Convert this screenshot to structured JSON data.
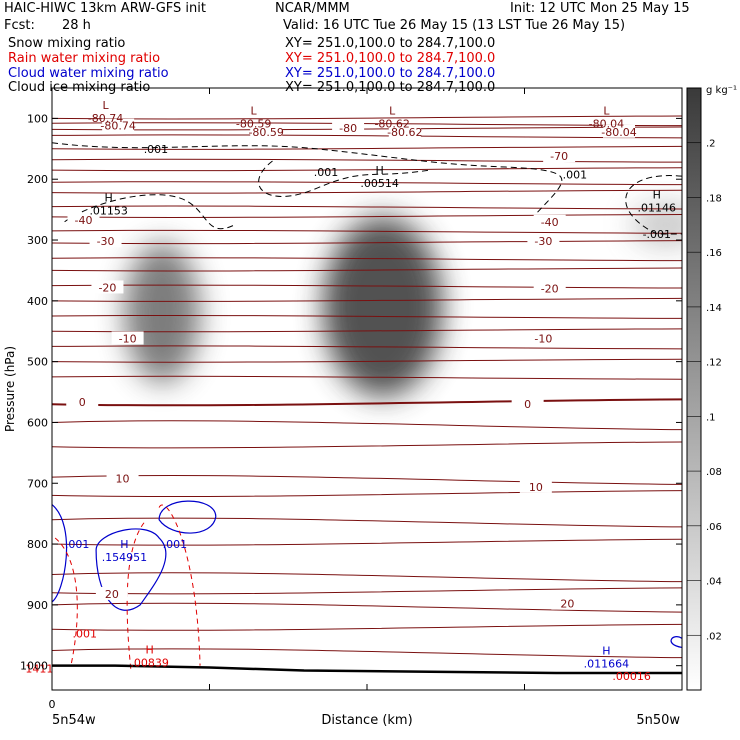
{
  "header": {
    "title": "HAIC-HIWC 13km ARW-GFS init",
    "org": "NCAR/MMM",
    "init": "Init: 12 UTC Mon 25 May 15",
    "fcst_label": "Fcst:",
    "fcst_value": "28 h",
    "valid": "Valid: 16 UTC Tue 26 May 15 (13 LST Tue 26 May 15)"
  },
  "fields": [
    {
      "name": "Snow mixing ratio",
      "xy": "XY= 251.0,100.0 to 284.7,100.0",
      "color": "#000000"
    },
    {
      "name": "Rain water mixing ratio",
      "xy": "XY= 251.0,100.0 to 284.7,100.0",
      "color": "#e00000"
    },
    {
      "name": "Cloud water mixing ratio",
      "xy": "XY= 251.0,100.0 to 284.7,100.0",
      "color": "#0000cc"
    },
    {
      "name": "Cloud ice mixing ratio",
      "xy": "XY= 251.0,100.0 to 284.7,100.0",
      "color": "#000000"
    }
  ],
  "colors": {
    "temperature_contour": "#7a1010",
    "rain_contour": "#e00000",
    "cloud_water_contour": "#0000cc",
    "cloud_ice_contour": "#000000",
    "terrain": "#000000"
  },
  "chart_data": {
    "type": "heatmap",
    "ylabel": "Pressure (hPa)",
    "xlabel": "Distance (km)",
    "x_start_label": "5n54w",
    "x_end_label": "5n50w",
    "x_zero_label": "0",
    "y_ticks": [
      100,
      200,
      300,
      400,
      500,
      600,
      700,
      800,
      900,
      1000
    ],
    "ylim": [
      50,
      1040
    ],
    "xlim": [
      0,
      1000
    ],
    "x_ticks": [
      0,
      250,
      500,
      750,
      1000
    ],
    "colorbar": {
      "unit": "g kg⁻¹",
      "ticks": [
        ".02",
        ".04",
        ".06",
        ".08",
        ".1",
        ".12",
        ".14",
        ".16",
        ".18",
        ".2"
      ],
      "range": [
        0,
        0.22
      ]
    },
    "snow_blobs": [
      {
        "x": 175,
        "p": 420,
        "value": 0.15
      },
      {
        "x": 525,
        "p": 410,
        "value": 0.2
      },
      {
        "x": 975,
        "p": 275,
        "value": 0.06
      }
    ],
    "temperature_labels": [
      {
        "text": "-80.74",
        "x": 105,
        "p": 112
      },
      {
        "text": "-80.59",
        "x": 340,
        "p": 122
      },
      {
        "text": "-80",
        "x": 470,
        "p": 116
      },
      {
        "text": "-80.62",
        "x": 560,
        "p": 122
      },
      {
        "text": "-80.04",
        "x": 900,
        "p": 122
      },
      {
        "text": "-70",
        "x": 805,
        "p": 162
      },
      {
        "text": "-40",
        "x": 50,
        "p": 267
      },
      {
        "text": "-40",
        "x": 790,
        "p": 270
      },
      {
        "text": "-30",
        "x": 85,
        "p": 302
      },
      {
        "text": "-30",
        "x": 780,
        "p": 302
      },
      {
        "text": "-20",
        "x": 88,
        "p": 378
      },
      {
        "text": "-20",
        "x": 790,
        "p": 380
      },
      {
        "text": "-10",
        "x": 120,
        "p": 462
      },
      {
        "text": "-10",
        "x": 780,
        "p": 462
      },
      {
        "text": "0",
        "x": 48,
        "p": 566
      },
      {
        "text": "0",
        "x": 755,
        "p": 570
      },
      {
        "text": "10",
        "x": 112,
        "p": 692
      },
      {
        "text": "10",
        "x": 768,
        "p": 706
      },
      {
        "text": "20",
        "x": 95,
        "p": 882
      },
      {
        "text": "20",
        "x": 818,
        "p": 898
      }
    ],
    "extrema": [
      {
        "kind": "L",
        "text": "-80.74",
        "x": 85,
        "p": 93
      },
      {
        "kind": "L",
        "text": "-80.59",
        "x": 320,
        "p": 102
      },
      {
        "kind": "L",
        "text": "-80.62",
        "x": 540,
        "p": 102
      },
      {
        "kind": "L",
        "text": "-80.04",
        "x": 880,
        "p": 102
      },
      {
        "kind": "H",
        "text": ".01153",
        "x": 90,
        "p": 245
      },
      {
        "kind": "H",
        "text": ".00514",
        "x": 520,
        "p": 200
      },
      {
        "kind": "H",
        "text": ".01146",
        "x": 960,
        "p": 240
      },
      {
        "kind": "H",
        "text": ".154951",
        "x": 115,
        "p": 815
      },
      {
        "kind": "H",
        "text": ".00839",
        "x": 155,
        "p": 988
      },
      {
        "kind": "H",
        "text": ".011664",
        "x": 880,
        "p": 990
      },
      {
        "kind": "",
        "text": ".00016",
        "x": 920,
        "p": 1010
      }
    ],
    "ice_labels": [
      {
        "text": ".001",
        "x": 165,
        "p": 150
      },
      {
        "text": ".001",
        "x": 435,
        "p": 188
      },
      {
        "text": ".001",
        "x": 830,
        "p": 192
      },
      {
        "text": "-.001",
        "x": 960,
        "p": 290
      }
    ],
    "water_labels": [
      {
        "text": ".001",
        "x": 40,
        "p": 800
      },
      {
        "text": ".001",
        "x": 195,
        "p": 800
      }
    ],
    "rain_labels": [
      {
        "text": ".001",
        "x": 52,
        "p": 947
      },
      {
        "text": "1411",
        "x": -20,
        "p": 1005
      }
    ],
    "terrain_line": [
      [
        0,
        1000
      ],
      [
        100,
        1000
      ],
      [
        250,
        1003
      ],
      [
        400,
        1008
      ],
      [
        600,
        1010
      ],
      [
        800,
        1012
      ],
      [
        1000,
        1012
      ]
    ]
  }
}
